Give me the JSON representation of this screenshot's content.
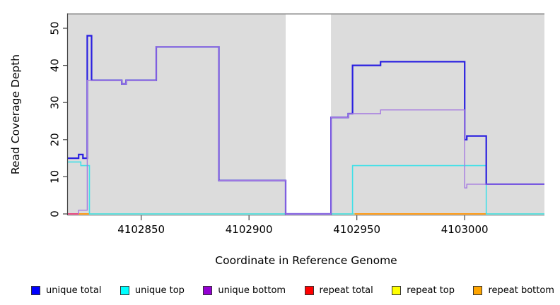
{
  "chart_data": {
    "type": "line",
    "subtype": "step-coverage-plot",
    "title": "",
    "xlabel": "Coordinate in Reference Genome",
    "ylabel": "Read Coverage Depth",
    "xlim": [
      4102816,
      4103037
    ],
    "ylim": [
      0,
      54
    ],
    "x_ticks": [
      4102850,
      4102900,
      4102950,
      4103000
    ],
    "y_ticks": [
      0,
      10,
      20,
      30,
      40,
      50
    ],
    "grid": false,
    "panel_background": "#dcdcdc",
    "gap_band": {
      "x0": 4102917,
      "x1": 4102938,
      "color": "#ffffff"
    },
    "axis_color": "#444444",
    "legend_position": "bottom",
    "series": [
      {
        "name": "repeat top",
        "legend_color": "#ffff00",
        "line_color": "#8fd98f",
        "points": [
          [
            4102816,
            0
          ],
          [
            4103037,
            0
          ]
        ]
      },
      {
        "name": "repeat total",
        "legend_color": "#ff0000",
        "line_color": "#e8457f",
        "points": [
          [
            4102816,
            0
          ],
          [
            4102822,
            0
          ]
        ]
      },
      {
        "name": "repeat bottom",
        "legend_color": "#ffa500",
        "line_color": "#ff9912",
        "segments": [
          [
            [
              4102821,
              0
            ],
            [
              4102826,
              0
            ]
          ],
          [
            [
              4102949,
              0
            ],
            [
              4103010,
              0
            ]
          ]
        ]
      },
      {
        "name": "unique top",
        "legend_color": "#00ffff",
        "line_color": "#40e0e8",
        "points": [
          [
            4102816,
            14
          ],
          [
            4102822,
            14
          ],
          [
            4102822,
            13
          ],
          [
            4102826,
            13
          ],
          [
            4102826,
            0
          ],
          [
            4102948,
            0
          ],
          [
            4102948,
            13
          ],
          [
            4103010,
            13
          ],
          [
            4103010,
            0
          ],
          [
            4103037,
            0
          ]
        ]
      },
      {
        "name": "unique total",
        "legend_color": "#0000ff",
        "line_color": "#2a20e0",
        "points": [
          [
            4102816,
            15
          ],
          [
            4102821,
            15
          ],
          [
            4102821,
            16
          ],
          [
            4102823,
            16
          ],
          [
            4102823,
            15
          ],
          [
            4102825,
            15
          ],
          [
            4102825,
            48
          ],
          [
            4102827,
            48
          ],
          [
            4102827,
            36
          ],
          [
            4102841,
            36
          ],
          [
            4102841,
            35
          ],
          [
            4102843,
            35
          ],
          [
            4102843,
            36
          ],
          [
            4102857,
            36
          ],
          [
            4102857,
            45
          ],
          [
            4102886,
            45
          ],
          [
            4102886,
            9
          ],
          [
            4102917,
            9
          ],
          [
            4102917,
            0
          ],
          [
            4102938,
            0
          ],
          [
            4102938,
            26
          ],
          [
            4102946,
            26
          ],
          [
            4102946,
            27
          ],
          [
            4102948,
            27
          ],
          [
            4102948,
            40
          ],
          [
            4102961,
            40
          ],
          [
            4102961,
            41
          ],
          [
            4103000,
            41
          ],
          [
            4103000,
            20
          ],
          [
            4103001,
            20
          ],
          [
            4103001,
            21
          ],
          [
            4103010,
            21
          ],
          [
            4103010,
            8
          ],
          [
            4103037,
            8
          ]
        ]
      },
      {
        "name": "unique bottom",
        "legend_color": "#9400d3",
        "line_color": "#a478e0",
        "points": [
          [
            4102821,
            0
          ],
          [
            4102821,
            1
          ],
          [
            4102825,
            1
          ],
          [
            4102825,
            36
          ],
          [
            4102841,
            36
          ],
          [
            4102841,
            35
          ],
          [
            4102843,
            35
          ],
          [
            4102843,
            36
          ],
          [
            4102857,
            36
          ],
          [
            4102857,
            45
          ],
          [
            4102886,
            45
          ],
          [
            4102886,
            9
          ],
          [
            4102917,
            9
          ],
          [
            4102917,
            0
          ],
          [
            4102938,
            0
          ],
          [
            4102938,
            26
          ],
          [
            4102946,
            26
          ],
          [
            4102946,
            27
          ],
          [
            4102961,
            27
          ],
          [
            4102961,
            28
          ],
          [
            4103000,
            28
          ],
          [
            4103000,
            7
          ],
          [
            4103001,
            7
          ],
          [
            4103001,
            8
          ],
          [
            4103037,
            8
          ]
        ]
      }
    ],
    "legend": [
      {
        "label": "unique total",
        "color": "#0000ff"
      },
      {
        "label": "unique top",
        "color": "#00ffff"
      },
      {
        "label": "unique bottom",
        "color": "#9400d3"
      },
      {
        "label": "repeat total",
        "color": "#ff0000"
      },
      {
        "label": "repeat top",
        "color": "#ffff00"
      },
      {
        "label": "repeat bottom",
        "color": "#ffa500"
      }
    ]
  }
}
